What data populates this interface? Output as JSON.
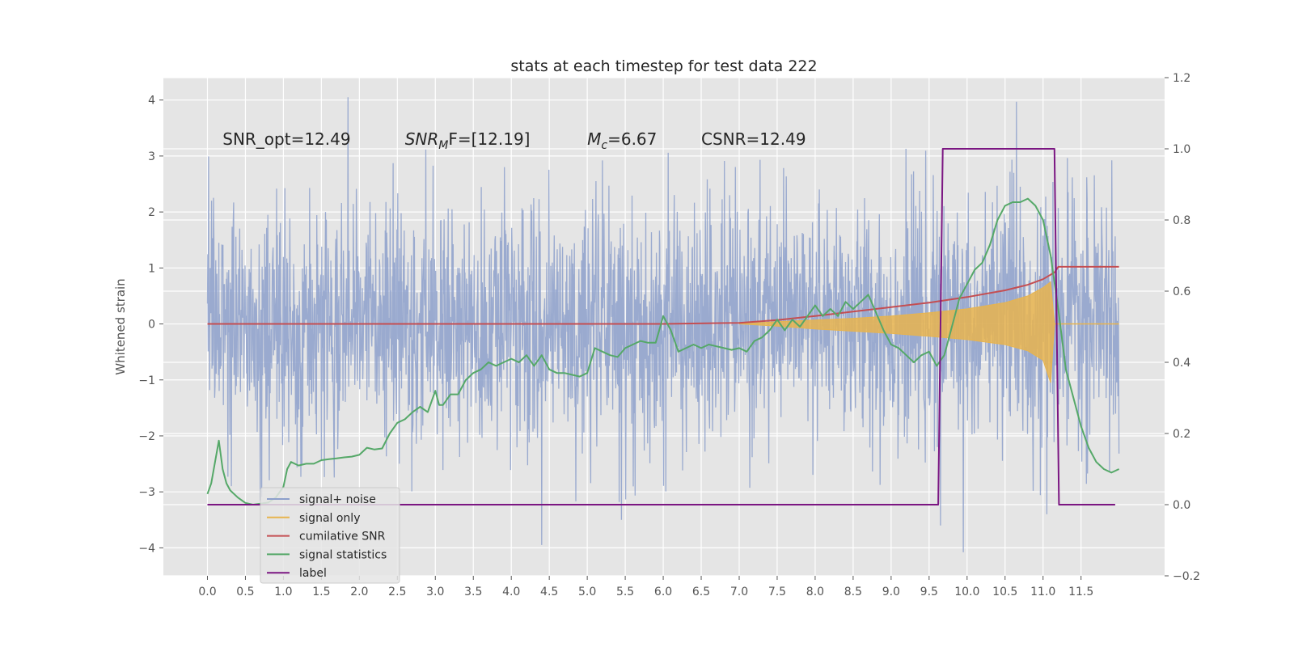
{
  "chart_data": {
    "type": "line",
    "title": "stats at each timestep for test data 222",
    "ylabel_left": "Whitened strain",
    "ylim_left": [
      -4.5,
      4.4
    ],
    "ylim_right": [
      -0.2,
      1.2
    ],
    "xlim": [
      -0.58,
      12.6
    ],
    "x_ticks": [
      0.0,
      0.5,
      1.0,
      1.5,
      2.0,
      2.5,
      3.0,
      3.5,
      4.0,
      4.5,
      5.0,
      5.5,
      6.0,
      6.5,
      7.0,
      7.5,
      8.0,
      8.5,
      9.0,
      9.5,
      10.0,
      10.5,
      11.0,
      11.5
    ],
    "x_tick_labels": [
      "0.0",
      "0.5",
      "1.0",
      "1.5",
      "2.0",
      "2.5",
      "3.0",
      "3.5",
      "4.0",
      "4.5",
      "5.0",
      "5.5",
      "6.0",
      "6.5",
      "7.0",
      "7.5",
      "8.0",
      "8.5",
      "9.0",
      "9.5",
      "10.0",
      "10.5",
      "11.0",
      "11.5"
    ],
    "y_ticks_left": [
      -4,
      -3,
      -2,
      -1,
      0,
      1,
      2,
      3,
      4
    ],
    "y_tick_labels_left": [
      "−4",
      "−3",
      "−2",
      "−1",
      "0",
      "1",
      "2",
      "3",
      "4"
    ],
    "y_ticks_right": [
      -0.2,
      0.0,
      0.2,
      0.4,
      0.6,
      0.8,
      1.0,
      1.2
    ],
    "y_tick_labels_right": [
      "−0.2",
      "0.0",
      "0.2",
      "0.4",
      "0.6",
      "0.8",
      "1.0",
      "1.2"
    ],
    "annotations": [
      {
        "id": "snr-opt",
        "text": "SNR_opt=12.49",
        "x": 0.2,
        "y": 3.2
      },
      {
        "id": "snr-mf",
        "text": "SNR",
        "sub": "M",
        "rest": "F=[12.19]",
        "x": 2.6,
        "y": 3.2
      },
      {
        "id": "mc",
        "text": "M",
        "sub": "c",
        "rest": "=6.67",
        "x": 5.0,
        "y": 3.2
      },
      {
        "id": "csnr",
        "text": "CSNR=12.49",
        "x": 6.5,
        "y": 3.2
      }
    ],
    "grid": true,
    "legend_position": "lower-left",
    "series": [
      {
        "name": "signal+ noise",
        "axis": "left",
        "color": "#8da0cb",
        "style": "dense-noise",
        "x_range": [
          0.0,
          12.0
        ],
        "amplitude_band": [
          -2.6,
          2.6
        ],
        "peak_extremes": [
          {
            "x": 1.85,
            "y": 4.05
          },
          {
            "x": 10.65,
            "y": 3.97
          },
          {
            "x": 4.4,
            "y": -3.95
          },
          {
            "x": 9.95,
            "y": -4.08
          },
          {
            "x": 5.45,
            "y": -3.5
          },
          {
            "x": 9.65,
            "y": -3.6
          },
          {
            "x": 11.05,
            "y": -3.4
          }
        ]
      },
      {
        "name": "signal only",
        "axis": "left",
        "color": "#e7b44f",
        "style": "chirp-envelope",
        "x": [
          7.0,
          7.5,
          8.0,
          8.5,
          9.0,
          9.5,
          10.0,
          10.5,
          10.8,
          11.0,
          11.1,
          11.15,
          12.0
        ],
        "upper": [
          0.0,
          0.04,
          0.07,
          0.1,
          0.14,
          0.2,
          0.27,
          0.38,
          0.5,
          0.65,
          0.75,
          0.0,
          0.0
        ],
        "lower": [
          0.0,
          -0.04,
          -0.09,
          -0.13,
          -0.17,
          -0.22,
          -0.28,
          -0.37,
          -0.48,
          -0.65,
          -1.05,
          0.0,
          0.0
        ]
      },
      {
        "name": "cumilative SNR",
        "axis": "left",
        "color": "#c44e52",
        "x": [
          0.0,
          6.0,
          7.0,
          7.5,
          8.0,
          8.5,
          9.0,
          9.5,
          10.0,
          10.5,
          10.8,
          11.0,
          11.15,
          11.2,
          12.0
        ],
        "y": [
          0.0,
          0.0,
          0.02,
          0.07,
          0.14,
          0.22,
          0.3,
          0.38,
          0.48,
          0.6,
          0.7,
          0.8,
          0.92,
          1.02,
          1.02
        ]
      },
      {
        "name": "signal statistics",
        "axis": "right",
        "color": "#55a868",
        "x": [
          0.0,
          0.05,
          0.1,
          0.15,
          0.2,
          0.25,
          0.3,
          0.4,
          0.5,
          0.6,
          0.7,
          0.8,
          0.9,
          1.0,
          1.05,
          1.1,
          1.2,
          1.3,
          1.4,
          1.5,
          1.6,
          1.7,
          1.8,
          1.9,
          2.0,
          2.1,
          2.2,
          2.3,
          2.4,
          2.5,
          2.6,
          2.7,
          2.8,
          2.9,
          3.0,
          3.05,
          3.1,
          3.2,
          3.3,
          3.4,
          3.5,
          3.6,
          3.7,
          3.8,
          3.9,
          4.0,
          4.1,
          4.2,
          4.3,
          4.4,
          4.5,
          4.6,
          4.7,
          4.8,
          4.9,
          5.0,
          5.1,
          5.2,
          5.3,
          5.4,
          5.5,
          5.6,
          5.7,
          5.8,
          5.9,
          6.0,
          6.1,
          6.2,
          6.3,
          6.4,
          6.5,
          6.6,
          6.7,
          6.8,
          6.9,
          7.0,
          7.1,
          7.2,
          7.3,
          7.4,
          7.5,
          7.6,
          7.7,
          7.8,
          7.9,
          8.0,
          8.1,
          8.2,
          8.3,
          8.4,
          8.5,
          8.6,
          8.7,
          8.8,
          8.9,
          9.0,
          9.1,
          9.2,
          9.3,
          9.4,
          9.5,
          9.6,
          9.7,
          9.8,
          9.9,
          10.0,
          10.1,
          10.2,
          10.3,
          10.4,
          10.5,
          10.6,
          10.7,
          10.8,
          10.9,
          11.0,
          11.1,
          11.2,
          11.3,
          11.4,
          11.5,
          11.6,
          11.7,
          11.8,
          11.9,
          12.0
        ],
        "y": [
          0.03,
          0.06,
          0.12,
          0.18,
          0.1,
          0.06,
          0.04,
          0.02,
          0.005,
          0.0,
          0.003,
          0.006,
          0.02,
          0.05,
          0.1,
          0.12,
          0.11,
          0.115,
          0.115,
          0.125,
          0.128,
          0.13,
          0.133,
          0.135,
          0.14,
          0.16,
          0.155,
          0.158,
          0.2,
          0.23,
          0.24,
          0.26,
          0.275,
          0.26,
          0.32,
          0.28,
          0.28,
          0.31,
          0.31,
          0.35,
          0.37,
          0.38,
          0.4,
          0.39,
          0.4,
          0.41,
          0.4,
          0.42,
          0.39,
          0.42,
          0.38,
          0.37,
          0.37,
          0.365,
          0.36,
          0.37,
          0.44,
          0.43,
          0.42,
          0.415,
          0.44,
          0.45,
          0.46,
          0.455,
          0.455,
          0.53,
          0.49,
          0.43,
          0.44,
          0.45,
          0.44,
          0.45,
          0.445,
          0.44,
          0.435,
          0.44,
          0.43,
          0.46,
          0.47,
          0.49,
          0.52,
          0.49,
          0.52,
          0.5,
          0.53,
          0.56,
          0.53,
          0.55,
          0.53,
          0.57,
          0.55,
          0.57,
          0.59,
          0.54,
          0.49,
          0.45,
          0.44,
          0.42,
          0.4,
          0.42,
          0.43,
          0.39,
          0.42,
          0.5,
          0.58,
          0.62,
          0.66,
          0.68,
          0.73,
          0.8,
          0.84,
          0.85,
          0.85,
          0.86,
          0.84,
          0.8,
          0.7,
          0.55,
          0.38,
          0.3,
          0.22,
          0.16,
          0.12,
          0.1,
          0.09,
          0.1
        ]
      },
      {
        "name": "label",
        "axis": "right",
        "color": "#7b1682",
        "x": [
          0.0,
          9.62,
          9.68,
          11.15,
          11.21,
          11.95
        ],
        "y": [
          0.0,
          0.0,
          1.0,
          1.0,
          0.0,
          0.0
        ]
      }
    ]
  }
}
